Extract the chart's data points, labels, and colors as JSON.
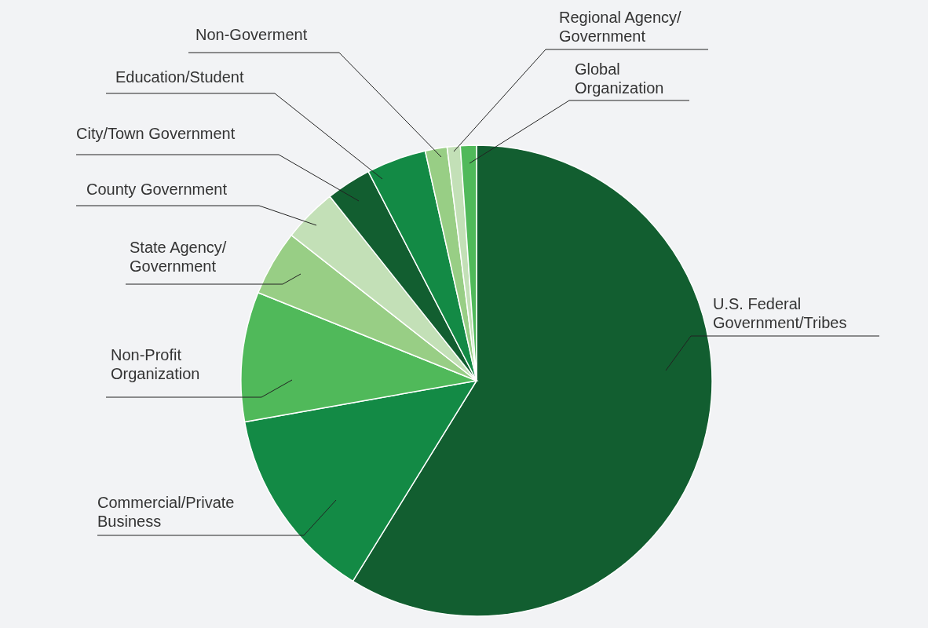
{
  "chart_data": {
    "type": "pie",
    "categories": [
      "U.S. Federal\nGovernment/Tribes",
      "Commercial/Private\nBusiness",
      "Non-Profit\nOrganization",
      "State Agency/\nGovernment",
      "County Government",
      "City/Town Government",
      "Education/Student",
      "Non-Goverment",
      "Regional Agency/\nGovernment",
      "Global\nOrganization"
    ],
    "values": [
      58.8,
      13.4,
      8.9,
      4.5,
      3.7,
      3.1,
      4.1,
      1.5,
      0.9,
      1.1
    ],
    "colors": [
      "#125e30",
      "#138a45",
      "#50b95a",
      "#98ce85",
      "#c3e0b7",
      "#125e30",
      "#138a45",
      "#98ce85",
      "#c3e0b7",
      "#50b95a"
    ]
  }
}
